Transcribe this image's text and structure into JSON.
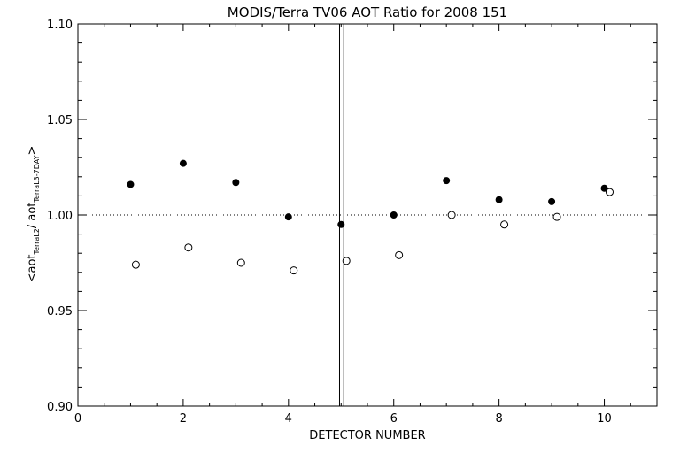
{
  "chart_data": {
    "type": "scatter",
    "title": "MODIS/Terra TV06 AOT Ratio for 2008 151",
    "xlabel": "DETECTOR NUMBER",
    "ylabel_parts": {
      "open": "<aot",
      "sub1": "TerraL2",
      "mid": "/ aot",
      "sub2": "TerraL3-7DAY",
      "close": ">"
    },
    "xlim": [
      0,
      11
    ],
    "ylim": [
      0.9,
      1.1
    ],
    "x_ticks": [
      "0",
      "2",
      "4",
      "6",
      "8",
      "10"
    ],
    "y_ticks": [
      "0.90",
      "0.95",
      "1.00",
      "1.05",
      "1.10"
    ],
    "reference_line_y": 1.0,
    "vertical_lines_x": [
      4.97,
      5.05
    ],
    "grid": false,
    "series": [
      {
        "marker": "filled-circle",
        "x": [
          1,
          2,
          3,
          4,
          5,
          6,
          7,
          8,
          9,
          10
        ],
        "y": [
          1.016,
          1.027,
          1.017,
          0.999,
          0.995,
          1.0,
          1.018,
          1.008,
          1.007,
          1.014
        ]
      },
      {
        "marker": "open-circle",
        "x": [
          1.1,
          2.1,
          3.1,
          4.1,
          5.1,
          6.1,
          7.1,
          8.1,
          9.1,
          10.1
        ],
        "y": [
          0.974,
          0.983,
          0.975,
          0.971,
          0.976,
          0.979,
          1.0,
          0.995,
          0.999,
          1.012
        ]
      }
    ]
  }
}
